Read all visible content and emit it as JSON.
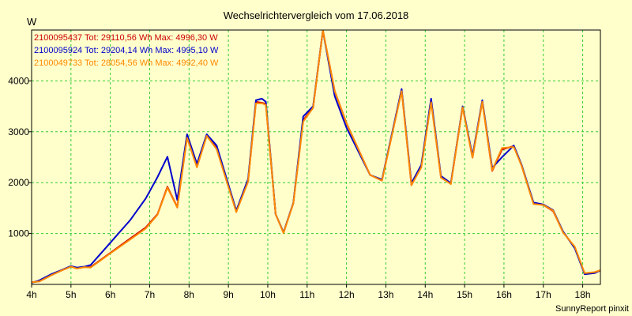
{
  "chart_data": {
    "type": "line",
    "title": "Wechselrichtervergleich vom 17.06.2018",
    "ylabel": "W",
    "xlabel": "",
    "footer": "SunnyReport pinxit",
    "grid": true,
    "legend_position": "top-left",
    "xlim": [
      4.0,
      18.45
    ],
    "ylim": [
      0,
      5000
    ],
    "x_ticks": [
      {
        "v": 4,
        "label": "4h"
      },
      {
        "v": 5,
        "label": "5h"
      },
      {
        "v": 6,
        "label": "6h"
      },
      {
        "v": 7,
        "label": "7h"
      },
      {
        "v": 8,
        "label": "8h"
      },
      {
        "v": 9,
        "label": "9h"
      },
      {
        "v": 10,
        "label": "10h"
      },
      {
        "v": 11,
        "label": "11h"
      },
      {
        "v": 12,
        "label": "12h"
      },
      {
        "v": 13,
        "label": "13h"
      },
      {
        "v": 14,
        "label": "14h"
      },
      {
        "v": 15,
        "label": "15h"
      },
      {
        "v": 16,
        "label": "16h"
      },
      {
        "v": 17,
        "label": "17h"
      },
      {
        "v": 18,
        "label": "18h"
      }
    ],
    "y_ticks": [
      {
        "v": 1000,
        "label": "1000"
      },
      {
        "v": 2000,
        "label": "2000"
      },
      {
        "v": 3000,
        "label": "3000"
      },
      {
        "v": 4000,
        "label": "4000"
      }
    ],
    "series": [
      {
        "name": "2100095437 Tot: 29110,56 Wh Max: 4996,30 W",
        "color": "#cc0000",
        "points": [
          [
            4.0,
            40
          ],
          [
            4.2,
            60
          ],
          [
            4.5,
            180
          ],
          [
            4.75,
            270
          ],
          [
            5.0,
            350
          ],
          [
            5.15,
            320
          ],
          [
            5.35,
            340
          ],
          [
            5.5,
            340
          ],
          [
            6.0,
            620
          ],
          [
            6.5,
            900
          ],
          [
            6.9,
            1120
          ],
          [
            7.2,
            1380
          ],
          [
            7.45,
            1920
          ],
          [
            7.7,
            1520
          ],
          [
            7.95,
            2900
          ],
          [
            8.2,
            2320
          ],
          [
            8.45,
            2930
          ],
          [
            8.7,
            2680
          ],
          [
            9.2,
            1440
          ],
          [
            9.5,
            2020
          ],
          [
            9.7,
            3590
          ],
          [
            9.85,
            3570
          ],
          [
            9.95,
            3550
          ],
          [
            10.2,
            1380
          ],
          [
            10.4,
            1020
          ],
          [
            10.65,
            1600
          ],
          [
            10.9,
            3230
          ],
          [
            11.15,
            3470
          ],
          [
            11.4,
            4990
          ],
          [
            11.7,
            3800
          ],
          [
            12.0,
            3170
          ],
          [
            12.6,
            2150
          ],
          [
            12.9,
            2040
          ],
          [
            13.4,
            3820
          ],
          [
            13.65,
            1950
          ],
          [
            13.9,
            2320
          ],
          [
            14.15,
            3610
          ],
          [
            14.4,
            2100
          ],
          [
            14.65,
            1980
          ],
          [
            14.95,
            3490
          ],
          [
            15.2,
            2490
          ],
          [
            15.45,
            3600
          ],
          [
            15.7,
            2230
          ],
          [
            15.95,
            2650
          ],
          [
            16.25,
            2720
          ],
          [
            16.45,
            2330
          ],
          [
            16.75,
            1590
          ],
          [
            17.0,
            1560
          ],
          [
            17.25,
            1440
          ],
          [
            17.5,
            1030
          ],
          [
            17.8,
            730
          ],
          [
            18.05,
            210
          ],
          [
            18.3,
            230
          ],
          [
            18.45,
            270
          ]
        ]
      },
      {
        "name": "2100095924 Tot: 29204,14 Wh Max: 4995,10 W",
        "color": "#0000cc",
        "points": [
          [
            4.0,
            30
          ],
          [
            4.2,
            80
          ],
          [
            4.5,
            200
          ],
          [
            4.75,
            280
          ],
          [
            5.0,
            360
          ],
          [
            5.15,
            330
          ],
          [
            5.35,
            350
          ],
          [
            5.5,
            380
          ],
          [
            6.0,
            820
          ],
          [
            6.5,
            1260
          ],
          [
            6.9,
            1690
          ],
          [
            7.2,
            2110
          ],
          [
            7.45,
            2510
          ],
          [
            7.7,
            1660
          ],
          [
            7.95,
            2950
          ],
          [
            8.2,
            2370
          ],
          [
            8.45,
            2950
          ],
          [
            8.7,
            2730
          ],
          [
            9.2,
            1450
          ],
          [
            9.5,
            2070
          ],
          [
            9.7,
            3620
          ],
          [
            9.85,
            3650
          ],
          [
            9.95,
            3590
          ],
          [
            10.2,
            1380
          ],
          [
            10.4,
            1020
          ],
          [
            10.65,
            1600
          ],
          [
            10.9,
            3300
          ],
          [
            11.15,
            3500
          ],
          [
            11.4,
            4990
          ],
          [
            11.7,
            3700
          ],
          [
            12.0,
            3080
          ],
          [
            12.6,
            2150
          ],
          [
            12.9,
            2060
          ],
          [
            13.4,
            3840
          ],
          [
            13.65,
            1990
          ],
          [
            13.9,
            2350
          ],
          [
            14.15,
            3650
          ],
          [
            14.4,
            2130
          ],
          [
            14.65,
            1990
          ],
          [
            14.95,
            3500
          ],
          [
            15.2,
            2530
          ],
          [
            15.45,
            3620
          ],
          [
            15.7,
            2290
          ],
          [
            15.95,
            2500
          ],
          [
            16.25,
            2730
          ],
          [
            16.45,
            2350
          ],
          [
            16.75,
            1610
          ],
          [
            17.0,
            1570
          ],
          [
            17.25,
            1460
          ],
          [
            17.5,
            1040
          ],
          [
            17.8,
            710
          ],
          [
            18.05,
            200
          ],
          [
            18.3,
            220
          ],
          [
            18.45,
            280
          ]
        ]
      },
      {
        "name": "2100049733 Tot: 28054,56 Wh Max: 4992,40 W",
        "color": "#ff8800",
        "points": [
          [
            4.0,
            40
          ],
          [
            4.2,
            60
          ],
          [
            4.5,
            180
          ],
          [
            4.75,
            270
          ],
          [
            5.0,
            350
          ],
          [
            5.15,
            310
          ],
          [
            5.35,
            340
          ],
          [
            5.5,
            330
          ],
          [
            6.0,
            610
          ],
          [
            6.5,
            880
          ],
          [
            6.9,
            1100
          ],
          [
            7.2,
            1370
          ],
          [
            7.45,
            1900
          ],
          [
            7.7,
            1510
          ],
          [
            7.95,
            2880
          ],
          [
            8.2,
            2300
          ],
          [
            8.45,
            2920
          ],
          [
            8.7,
            2660
          ],
          [
            9.2,
            1420
          ],
          [
            9.5,
            2020
          ],
          [
            9.7,
            3560
          ],
          [
            9.85,
            3560
          ],
          [
            9.95,
            3530
          ],
          [
            10.2,
            1380
          ],
          [
            10.4,
            1010
          ],
          [
            10.65,
            1590
          ],
          [
            10.9,
            3200
          ],
          [
            11.15,
            3470
          ],
          [
            11.4,
            4990
          ],
          [
            11.7,
            3800
          ],
          [
            12.0,
            3170
          ],
          [
            12.6,
            2150
          ],
          [
            12.9,
            2040
          ],
          [
            13.4,
            3800
          ],
          [
            13.65,
            1950
          ],
          [
            13.9,
            2300
          ],
          [
            14.15,
            3580
          ],
          [
            14.4,
            2100
          ],
          [
            14.65,
            1970
          ],
          [
            14.95,
            3480
          ],
          [
            15.2,
            2490
          ],
          [
            15.45,
            3590
          ],
          [
            15.7,
            2240
          ],
          [
            15.95,
            2680
          ],
          [
            16.25,
            2700
          ],
          [
            16.45,
            2330
          ],
          [
            16.75,
            1580
          ],
          [
            17.0,
            1560
          ],
          [
            17.25,
            1450
          ],
          [
            17.5,
            1020
          ],
          [
            17.8,
            740
          ],
          [
            18.05,
            220
          ],
          [
            18.3,
            240
          ],
          [
            18.45,
            280
          ]
        ]
      }
    ]
  }
}
